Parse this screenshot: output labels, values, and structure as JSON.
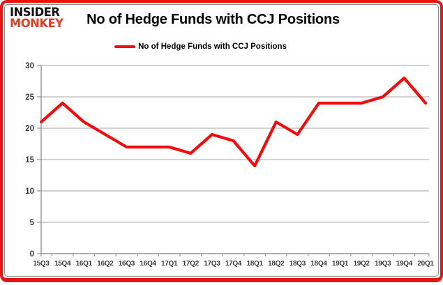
{
  "logo": {
    "line1": "INSIDER",
    "line2": "MONKEY"
  },
  "header": {
    "title": "No of Hedge Funds with CCJ Positions"
  },
  "legend": {
    "label": "No of Hedge Funds with CCJ Positions",
    "swatch_color": "#f40b0b"
  },
  "colors": {
    "series_red": "#f40b0b",
    "logo_black": "#111111",
    "logo_red": "#d9412b",
    "gridline": "#a6a6a6",
    "axis": "#808080",
    "tick_label": "#3b3b3b",
    "frame_red": "#e81313"
  },
  "chart_data": {
    "type": "line",
    "title": "No of Hedge Funds with CCJ Positions",
    "categories": [
      "15Q3",
      "15Q4",
      "16Q1",
      "16Q2",
      "16Q3",
      "16Q4",
      "17Q1",
      "17Q2",
      "17Q3",
      "17Q4",
      "18Q1",
      "18Q2",
      "18Q3",
      "18Q4",
      "19Q1",
      "19Q2",
      "19Q3",
      "19Q4",
      "20Q1"
    ],
    "series": [
      {
        "name": "No of Hedge Funds with CCJ Positions",
        "color": "#f40b0b",
        "values": [
          21,
          24,
          21,
          19,
          17,
          17,
          17,
          16,
          19,
          18,
          14,
          21,
          19,
          24,
          24,
          24,
          25,
          28,
          24
        ]
      }
    ],
    "xlabel": "",
    "ylabel": "",
    "ylim": [
      0,
      30
    ],
    "y_ticks": [
      0,
      5,
      10,
      15,
      20,
      25,
      30
    ],
    "grid": true,
    "legend_position": "top-center"
  }
}
